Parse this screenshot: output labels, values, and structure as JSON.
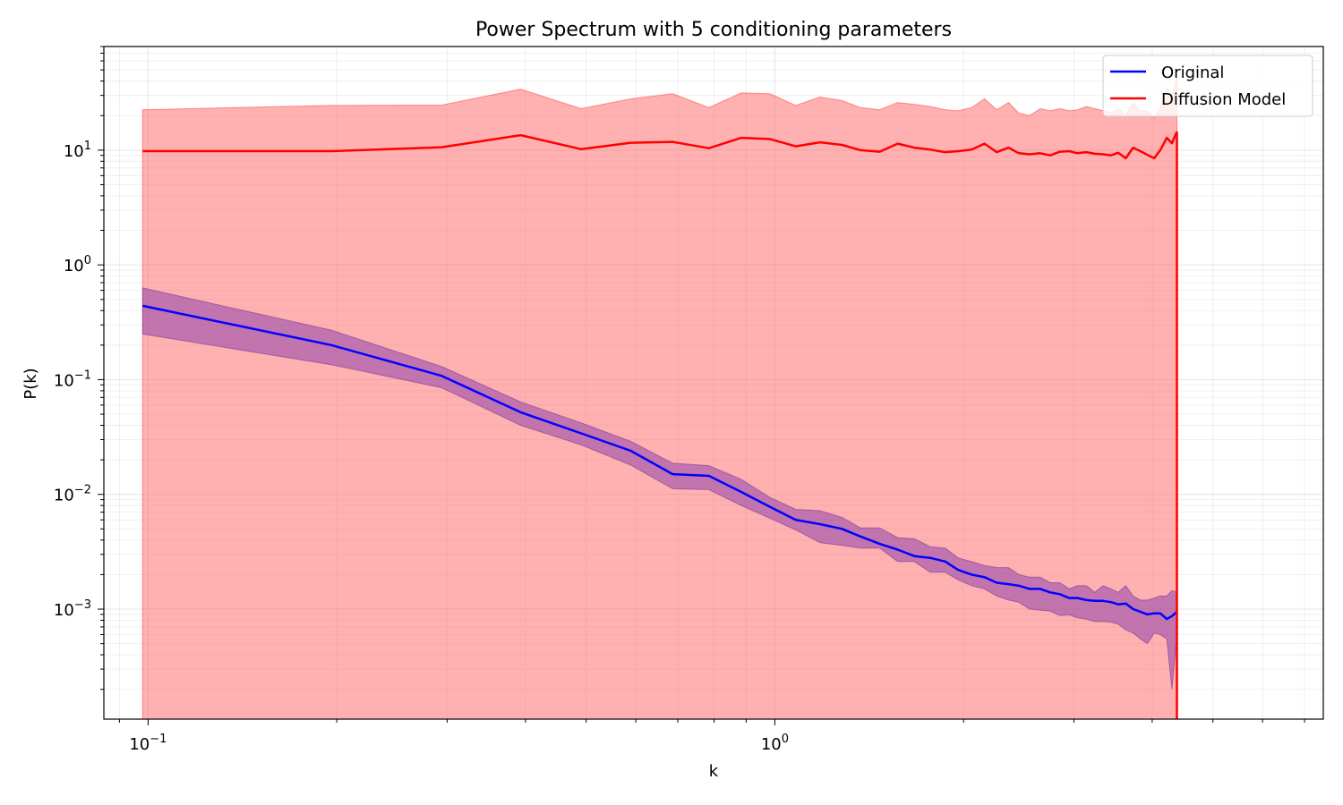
{
  "chart_data": {
    "type": "line",
    "title": "Power Spectrum with 5 conditioning parameters",
    "xlabel": "k",
    "ylabel": "P(k)",
    "xscale": "log",
    "yscale": "log",
    "xlim": [
      0.085,
      7.5
    ],
    "ylim": [
      0.00011,
      80
    ],
    "grid": true,
    "legend_position": "top-right",
    "x_ticks": [
      {
        "value": 0.1,
        "base": "10",
        "exp": "−1"
      },
      {
        "value": 1,
        "base": "10",
        "exp": "0"
      }
    ],
    "y_ticks": [
      {
        "value": 10,
        "base": "10",
        "exp": "1"
      },
      {
        "value": 1,
        "base": "10",
        "exp": "0"
      },
      {
        "value": 0.1,
        "base": "10",
        "exp": "−1"
      },
      {
        "value": 0.01,
        "base": "10",
        "exp": "−2"
      },
      {
        "value": 0.001,
        "base": "10",
        "exp": "−3"
      }
    ],
    "series": [
      {
        "name": "Original",
        "color": "#0000ff",
        "band_color": "#9b59b6",
        "x": [
          0.098,
          0.196,
          0.294,
          0.393,
          0.491,
          0.589,
          0.687,
          0.785,
          0.884,
          0.982,
          1.08,
          1.18,
          1.28,
          1.37,
          1.47,
          1.57,
          1.67,
          1.77,
          1.87,
          1.96,
          2.06,
          2.16,
          2.26,
          2.36,
          2.45,
          2.55,
          2.65,
          2.75,
          2.85,
          2.95,
          3.04,
          3.14,
          3.24,
          3.34,
          3.44,
          3.53,
          3.63,
          3.73,
          3.83,
          3.93,
          4.03,
          4.12,
          4.22,
          4.3,
          4.38
        ],
        "values": [
          0.44,
          0.2,
          0.108,
          0.052,
          0.034,
          0.024,
          0.015,
          0.0145,
          0.0105,
          0.0078,
          0.006,
          0.0055,
          0.005,
          0.0043,
          0.0037,
          0.0033,
          0.0029,
          0.0028,
          0.0026,
          0.0022,
          0.002,
          0.0019,
          0.0017,
          0.00165,
          0.0016,
          0.0015,
          0.0015,
          0.0014,
          0.00135,
          0.00125,
          0.00125,
          0.0012,
          0.00118,
          0.00118,
          0.00115,
          0.0011,
          0.00112,
          0.001,
          0.00095,
          0.0009,
          0.00092,
          0.00092,
          0.00082,
          0.00087,
          0.00095
        ],
        "lower": [
          0.25,
          0.135,
          0.085,
          0.04,
          0.027,
          0.018,
          0.0112,
          0.011,
          0.008,
          0.0062,
          0.0049,
          0.0038,
          0.0036,
          0.0034,
          0.0034,
          0.0026,
          0.0026,
          0.0021,
          0.0021,
          0.0018,
          0.0016,
          0.0015,
          0.0013,
          0.0012,
          0.00115,
          0.001,
          0.00098,
          0.00096,
          0.00088,
          0.00089,
          0.00084,
          0.00082,
          0.00078,
          0.00078,
          0.00077,
          0.00074,
          0.00066,
          0.00062,
          0.00055,
          0.0005,
          0.00062,
          0.0006,
          0.00055,
          0.0002,
          0.0006
        ],
        "upper": [
          0.63,
          0.27,
          0.13,
          0.064,
          0.042,
          0.029,
          0.0187,
          0.0178,
          0.0135,
          0.0094,
          0.0074,
          0.0072,
          0.0063,
          0.0051,
          0.0051,
          0.0042,
          0.0041,
          0.0035,
          0.0034,
          0.0028,
          0.0026,
          0.0024,
          0.0023,
          0.0023,
          0.002,
          0.0019,
          0.0019,
          0.0017,
          0.0017,
          0.0015,
          0.0016,
          0.0016,
          0.0014,
          0.0016,
          0.0015,
          0.0014,
          0.0016,
          0.0013,
          0.0012,
          0.0012,
          0.00125,
          0.0013,
          0.0013,
          0.00145,
          0.0014
        ]
      },
      {
        "name": "Diffusion Model",
        "color": "#ff0000",
        "band_color": "#ff0000",
        "x": [
          0.098,
          0.196,
          0.294,
          0.393,
          0.491,
          0.589,
          0.687,
          0.785,
          0.884,
          0.982,
          1.08,
          1.18,
          1.28,
          1.37,
          1.47,
          1.57,
          1.67,
          1.77,
          1.87,
          1.96,
          2.06,
          2.16,
          2.26,
          2.36,
          2.45,
          2.55,
          2.65,
          2.75,
          2.85,
          2.95,
          3.04,
          3.14,
          3.24,
          3.34,
          3.44,
          3.53,
          3.63,
          3.73,
          3.83,
          3.93,
          4.03,
          4.12,
          4.22,
          4.3,
          4.38
        ],
        "values": [
          9.8,
          9.8,
          10.6,
          13.5,
          10.2,
          11.6,
          11.8,
          10.4,
          12.8,
          12.5,
          10.8,
          11.7,
          11.1,
          10.0,
          9.7,
          11.4,
          10.5,
          10.1,
          9.6,
          9.8,
          10.1,
          11.4,
          9.6,
          10.5,
          9.4,
          9.2,
          9.4,
          9.0,
          9.7,
          9.8,
          9.4,
          9.6,
          9.3,
          9.2,
          9.0,
          9.5,
          8.5,
          10.5,
          9.8,
          9.1,
          8.5,
          10.0,
          12.8,
          11.5,
          14.5
        ],
        "lower": [
          0.00011,
          0.00011,
          0.00011,
          0.00011,
          0.00011,
          0.00011,
          0.00011,
          0.00011,
          0.00011,
          0.00011,
          0.00011,
          0.00011,
          0.00011,
          0.00011,
          0.00011,
          0.00011,
          0.00011,
          0.00011,
          0.00011,
          0.00011,
          0.00011,
          0.00011,
          0.00011,
          0.00011,
          0.00011,
          0.00011,
          0.00011,
          0.00011,
          0.00011,
          0.00011,
          0.00011,
          0.00011,
          0.00011,
          0.00011,
          0.00011,
          0.00011,
          0.00011,
          0.00011,
          0.00011,
          0.00011,
          0.00011,
          0.00011,
          0.00011,
          0.00011,
          0.00011
        ],
        "upper": [
          22.5,
          24.5,
          24.7,
          34.0,
          23.0,
          28.0,
          31.0,
          23.5,
          31.5,
          31.0,
          24.5,
          29.0,
          27.0,
          23.5,
          22.5,
          26.0,
          25.0,
          24.0,
          22.5,
          22.0,
          23.5,
          28.0,
          22.5,
          26.0,
          21.0,
          20.0,
          23.0,
          22.0,
          23.0,
          22.0,
          22.5,
          24.0,
          23.0,
          22.0,
          21.0,
          23.0,
          20.0,
          26.0,
          22.0,
          22.0,
          19.0,
          23.0,
          35.0,
          30.0,
          43.0
        ]
      }
    ],
    "vertical_line": {
      "x": 4.38,
      "color": "#ff0000"
    }
  }
}
